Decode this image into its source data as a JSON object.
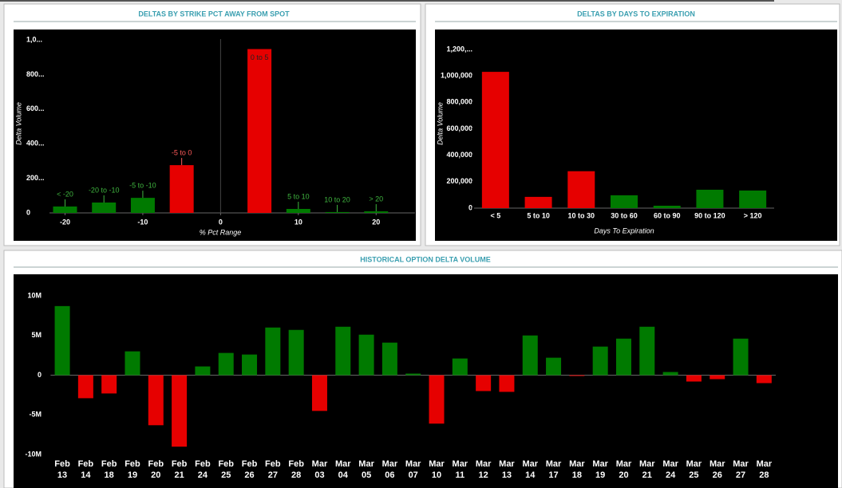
{
  "chart_data": [
    {
      "type": "bar",
      "title": "DELTAS BY STRIKE PCT AWAY FROM SPOT",
      "x_label": "% Pct Range",
      "y_label": "Delta Volume",
      "categories": [
        "< -20",
        "-20 to -10",
        "-5 to -10",
        "-5 to 0",
        "0 to 5",
        "5 to 10",
        "10 to 20",
        "> 20"
      ],
      "x": [
        -20,
        -15,
        -10,
        -5,
        5,
        10,
        15,
        20
      ],
      "values": [
        37,
        60,
        87,
        276,
        947,
        23,
        5,
        9
      ],
      "colors": [
        "#007a00",
        "#007a00",
        "#007a00",
        "#e60000",
        "#e60000",
        "#007a00",
        "#007a00",
        "#007a00"
      ],
      "xlim": [
        -22,
        25
      ],
      "xticks": [
        -20,
        -10,
        0,
        10,
        20
      ],
      "ylim": [
        0,
        1060
      ],
      "yticks": [
        0,
        {
          "value": 200,
          "label": "200..."
        },
        {
          "value": 400,
          "label": "400..."
        },
        {
          "value": 600,
          "label": "600..."
        },
        {
          "value": 800,
          "label": "800..."
        },
        {
          "value": 1000,
          "label": "1,0..."
        }
      ]
    },
    {
      "type": "bar",
      "title": "DELTAS BY DAYS TO EXPIRATION",
      "x_label": "Days To Expiration",
      "y_label": "Delta Volume",
      "categories": [
        "< 5",
        "5 to 10",
        "10 to 30",
        "30 to 60",
        "60 to 90",
        "90 to 120",
        "> 120"
      ],
      "values": [
        1030000,
        85000,
        279000,
        97000,
        18000,
        139000,
        133000
      ],
      "colors": [
        "#e60000",
        "#e60000",
        "#e60000",
        "#007a00",
        "#007a00",
        "#007a00",
        "#007a00"
      ],
      "ylim": [
        0,
        1350000
      ],
      "yticks": [
        0,
        {
          "value": 200000,
          "label": "200,000"
        },
        {
          "value": 400000,
          "label": "400,000"
        },
        {
          "value": 600000,
          "label": "600,000"
        },
        {
          "value": 800000,
          "label": "800,000"
        },
        {
          "value": 1000000,
          "label": "1,000,000"
        },
        {
          "value": 1200000,
          "label": "1,200,..."
        }
      ]
    },
    {
      "type": "bar",
      "title": "HISTORICAL OPTION DELTA VOLUME",
      "categories": [
        "Feb 13",
        "Feb 14",
        "Feb 18",
        "Feb 19",
        "Feb 20",
        "Feb 21",
        "Feb 24",
        "Feb 25",
        "Feb 26",
        "Feb 27",
        "Feb 28",
        "Mar 03",
        "Mar 04",
        "Mar 05",
        "Mar 06",
        "Mar 07",
        "Mar 10",
        "Mar 11",
        "Mar 12",
        "Mar 13",
        "Mar 14",
        "Mar 17",
        "Mar 18",
        "Mar 19",
        "Mar 20",
        "Mar 21",
        "Mar 24",
        "Mar 25",
        "Mar 26",
        "Mar 27",
        "Mar 28"
      ],
      "values": [
        8.7,
        -2.9,
        -2.3,
        3.0,
        -6.3,
        -9.0,
        1.1,
        2.8,
        2.6,
        6.0,
        5.7,
        -4.5,
        6.1,
        5.1,
        4.1,
        0.2,
        -6.1,
        2.1,
        -2.0,
        -2.1,
        5.0,
        2.2,
        -0.1,
        3.6,
        4.6,
        6.1,
        0.4,
        -0.8,
        -0.5,
        4.6,
        -1.0
      ],
      "positive_color": "#007a00",
      "negative_color": "#e60000",
      "ylim": [
        -13.7,
        12.7
      ],
      "yticks": [
        {
          "value": -10,
          "label": "-10M"
        },
        {
          "value": -5,
          "label": "-5M"
        },
        0,
        {
          "value": 5,
          "label": "5M"
        },
        {
          "value": 10,
          "label": "10M"
        }
      ]
    }
  ]
}
